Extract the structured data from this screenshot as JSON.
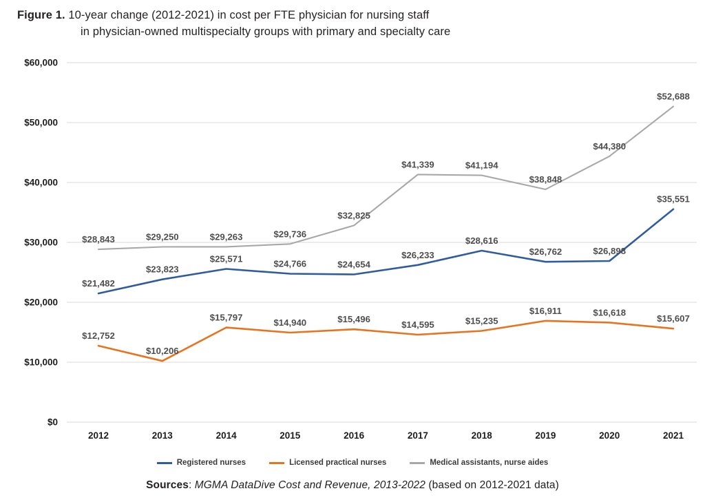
{
  "header": {
    "figure_label": "Figure 1.",
    "title_line1": "10-year change (2012-2021) in cost per FTE physician for nursing staff",
    "title_line2": "in physician-owned multispecialty groups with primary and specialty care"
  },
  "chart_data": {
    "type": "line",
    "title": "Figure 1. 10-year change (2012-2021) in cost per FTE physician for nursing staff in physician-owned multispecialty groups with primary and specialty care",
    "x": [
      "2012",
      "2013",
      "2014",
      "2015",
      "2016",
      "2017",
      "2018",
      "2019",
      "2020",
      "2021"
    ],
    "series": [
      {
        "name": "Registered nurses",
        "color": "#2E5C9E",
        "values": [
          21482,
          23823,
          25571,
          24766,
          24654,
          26233,
          28616,
          26762,
          26898,
          35551
        ]
      },
      {
        "name": "Licensed practical nurses",
        "color": "#E8731E",
        "values": [
          12752,
          10206,
          15797,
          14940,
          15496,
          14595,
          15235,
          16911,
          16618,
          15607
        ]
      },
      {
        "name": "Medical assistants, nurse aides",
        "color": "#A8A8A8",
        "values": [
          28843,
          29250,
          29263,
          29736,
          32825,
          41339,
          41194,
          38848,
          44380,
          52688
        ]
      }
    ],
    "ylim": [
      0,
      60000
    ],
    "ytick_step": 10000,
    "ytick_labels": [
      "$0",
      "$10,000",
      "$20,000",
      "$30,000",
      "$40,000",
      "$50,000",
      "$60,000"
    ],
    "grid": true,
    "gridline_color": "#D9D9D9",
    "legend_position": "bottom",
    "point_label_prefix": "$"
  },
  "footer": {
    "sources_label": "Sources",
    "colon": ": ",
    "source_citation": "MGMA DataDive Cost and Revenue, 2013-2022",
    "source_note": " (based on 2012-2021 data)"
  }
}
